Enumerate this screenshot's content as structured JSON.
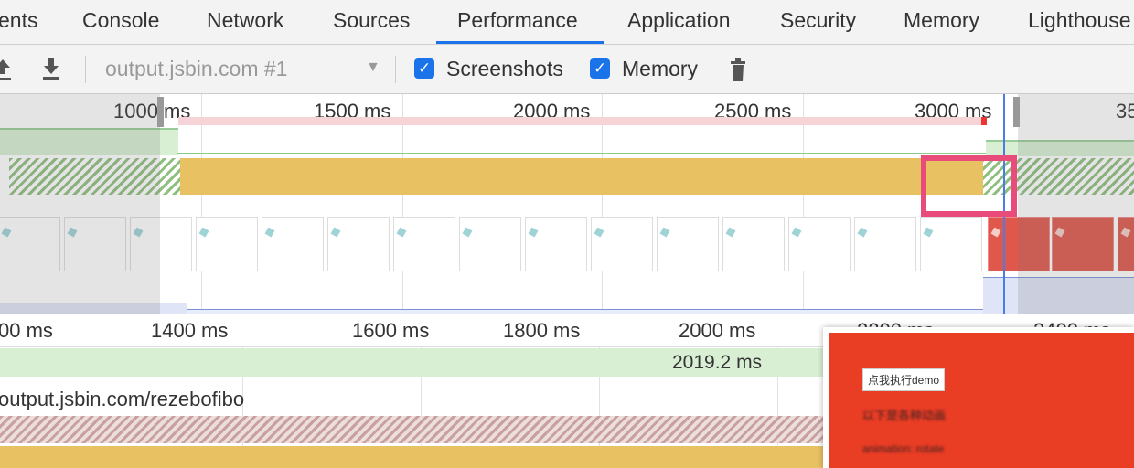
{
  "tabs": [
    "ents",
    "Console",
    "Network",
    "Sources",
    "Performance",
    "Application",
    "Security",
    "Memory",
    "Lighthouse"
  ],
  "active_tab": "Performance",
  "toolbar": {
    "recording_select": "output.jsbin.com #1",
    "screenshots_label": "Screenshots",
    "screenshots_checked": true,
    "memory_label": "Memory",
    "memory_checked": true
  },
  "overview": {
    "time_labels": [
      "1000 ms",
      "1500 ms",
      "2000 ms",
      "2500 ms",
      "3000 ms",
      "35"
    ]
  },
  "ruler": {
    "labels": [
      "00 ms",
      "1400 ms",
      "1600 ms",
      "1800 ms",
      "2000 ms",
      "2200 ms",
      "2400 ms"
    ]
  },
  "tracks": {
    "duration": "2019.2 ms",
    "frame_url": "output.jsbin.com/rezebofibo"
  },
  "tooltip": {
    "button": "点我执行demo",
    "heading": "以下是各种动画",
    "line": "animation: rotate"
  },
  "colors": {
    "accent": "#1a73e8",
    "scripting": "#e8c163",
    "idle": "#d8efd4",
    "highlight": "#e94b7a",
    "screenshot_red": "#e93d24"
  }
}
